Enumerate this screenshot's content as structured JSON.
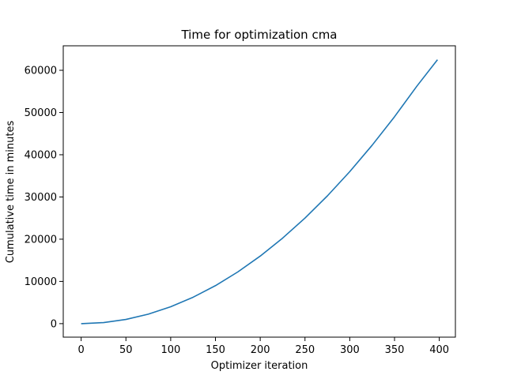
{
  "chart_data": {
    "type": "line",
    "title": "Time for optimization cma",
    "xlabel": "Optimizer iteration",
    "ylabel": "Cumulative time in minutes",
    "xlim": [
      -20,
      418
    ],
    "ylim": [
      -3200,
      65800
    ],
    "xticks": [
      0,
      50,
      100,
      150,
      200,
      250,
      300,
      350,
      400
    ],
    "yticks": [
      0,
      10000,
      20000,
      30000,
      40000,
      50000,
      60000
    ],
    "grid": false,
    "legend": "none",
    "series": [
      {
        "color": "#1f77b4",
        "x": [
          0,
          25,
          50,
          75,
          100,
          125,
          150,
          175,
          200,
          225,
          250,
          275,
          300,
          325,
          350,
          375,
          398
        ],
        "y": [
          0,
          250,
          1000,
          2250,
          4000,
          6250,
          9000,
          12250,
          16000,
          20250,
          25000,
          30250,
          36000,
          42250,
          49000,
          56250,
          62500
        ]
      }
    ]
  }
}
